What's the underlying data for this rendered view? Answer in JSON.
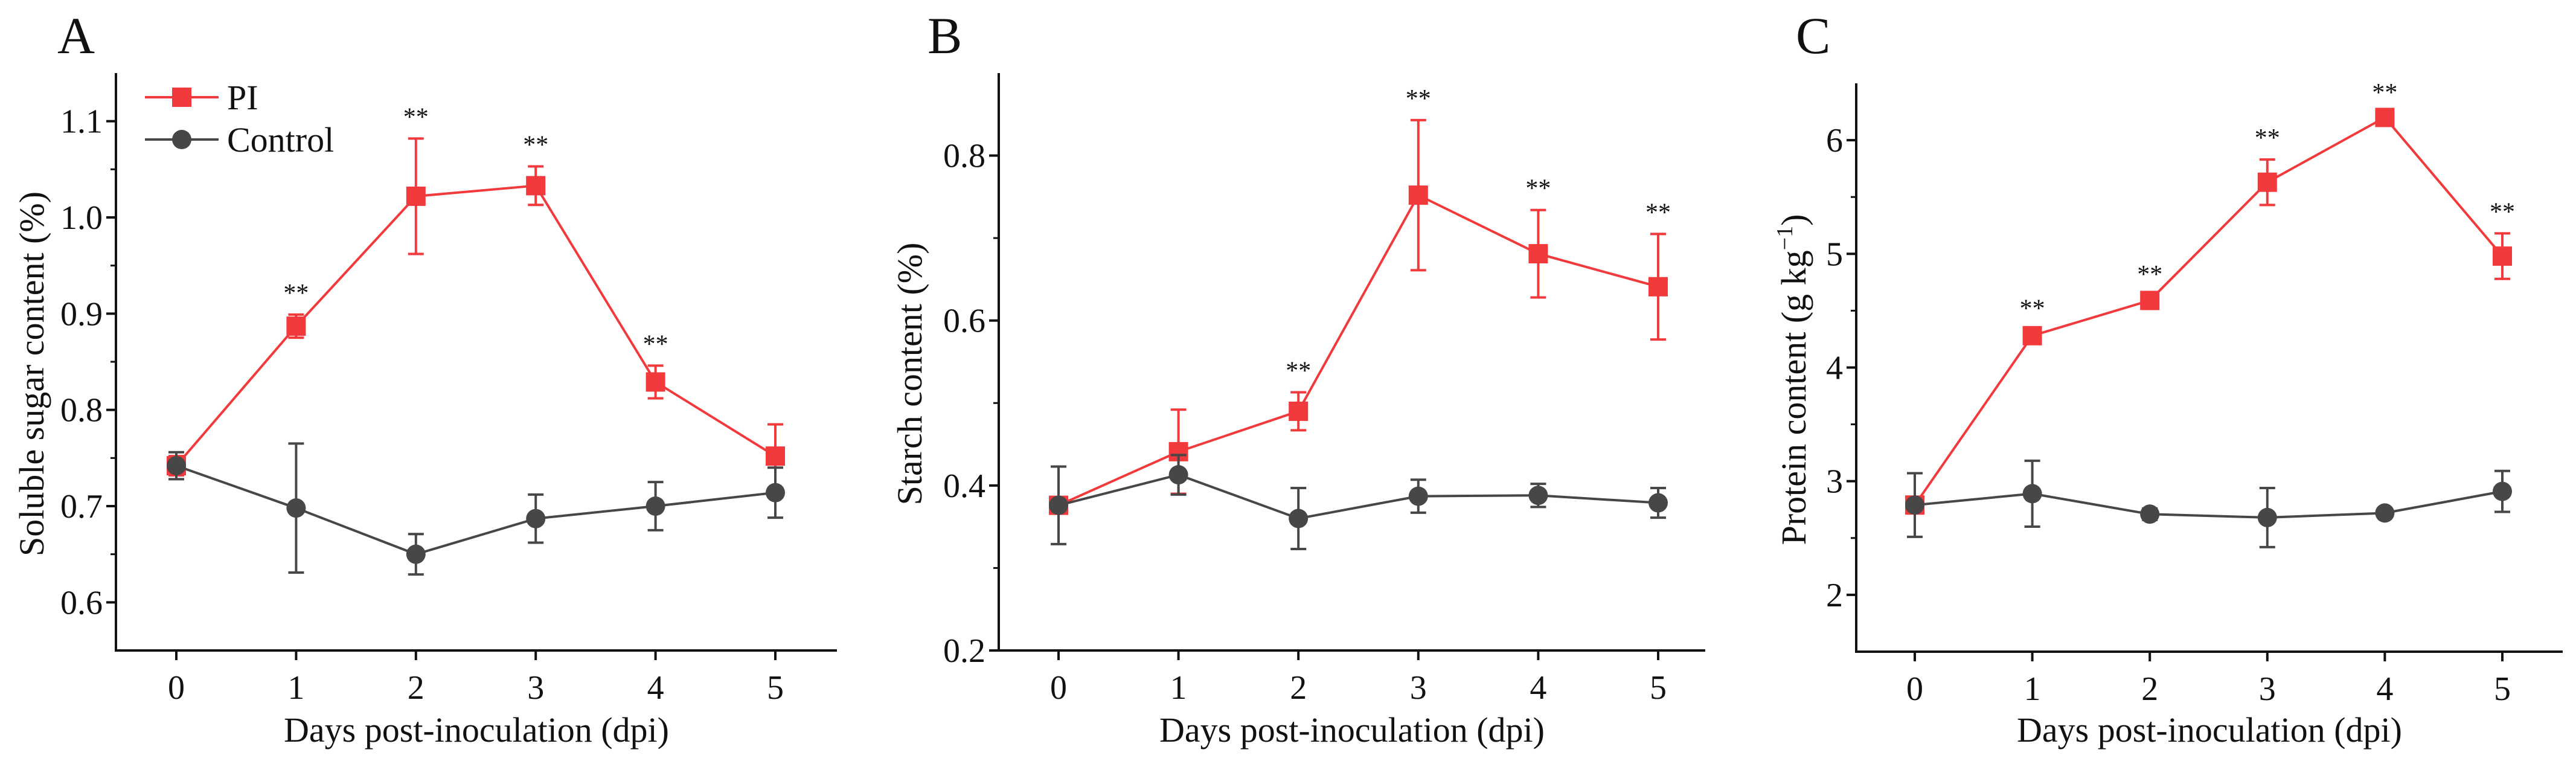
{
  "colors": {
    "PI": "#F2393C",
    "Control": "#474747"
  },
  "legend": [
    {
      "name": "PI",
      "marker": "square"
    },
    {
      "name": "Control",
      "marker": "circle"
    }
  ],
  "chart_data": [
    {
      "panel": "A",
      "type": "line",
      "xlabel": "Days post-inoculation (dpi)",
      "ylabel": "Soluble sugar content (%)",
      "ylabel_sup": "",
      "ylabel_end": "",
      "x": [
        0,
        1,
        2,
        3,
        4,
        5
      ],
      "xticks": [
        "0",
        "1",
        "2",
        "3",
        "4",
        "5"
      ],
      "ylim": [
        0.55,
        1.15
      ],
      "yticks": [
        0.6,
        0.7,
        0.8,
        0.9,
        1.0,
        1.1
      ],
      "ytick_labels": [
        "0.6",
        "0.7",
        "0.8",
        "0.9",
        "1.0",
        "1.1"
      ],
      "yminor": [
        0.65,
        0.75,
        0.85,
        0.95,
        1.05
      ],
      "legend_position": "top-left",
      "series": [
        {
          "name": "PI",
          "values": [
            0.742,
            0.887,
            1.022,
            1.033,
            0.829,
            0.752
          ],
          "errors": [
            0.01,
            0.012,
            0.06,
            0.02,
            0.017,
            0.033
          ]
        },
        {
          "name": "Control",
          "values": [
            0.742,
            0.698,
            0.65,
            0.687,
            0.7,
            0.714
          ],
          "errors": [
            0.014,
            0.067,
            0.021,
            0.025,
            0.025,
            0.026
          ]
        }
      ],
      "significance": [
        {
          "x": 1,
          "label": "**"
        },
        {
          "x": 2,
          "label": "**"
        },
        {
          "x": 3,
          "label": "**"
        },
        {
          "x": 4,
          "label": "**"
        }
      ]
    },
    {
      "panel": "B",
      "type": "line",
      "xlabel": "Days post-inoculation (dpi)",
      "ylabel": "Starch content (%)",
      "ylabel_sup": "",
      "ylabel_end": "",
      "x": [
        0,
        1,
        2,
        3,
        4,
        5
      ],
      "xticks": [
        "0",
        "1",
        "2",
        "3",
        "4",
        "5"
      ],
      "ylim": [
        0.2,
        0.9
      ],
      "yticks": [
        0.2,
        0.4,
        0.6,
        0.8
      ],
      "ytick_labels": [
        "0.2",
        "0.4",
        "0.6",
        "0.8"
      ],
      "yminor": [
        0.3,
        0.5,
        0.7
      ],
      "series": [
        {
          "name": "PI",
          "values": [
            0.376,
            0.441,
            0.49,
            0.752,
            0.681,
            0.641
          ],
          "errors": [
            0.008,
            0.051,
            0.023,
            0.091,
            0.053,
            0.064
          ]
        },
        {
          "name": "Control",
          "values": [
            0.376,
            0.413,
            0.36,
            0.387,
            0.388,
            0.379
          ],
          "errors": [
            0.047,
            0.024,
            0.037,
            0.02,
            0.014,
            0.018
          ]
        }
      ],
      "significance": [
        {
          "x": 2,
          "label": "**"
        },
        {
          "x": 3,
          "label": "**"
        },
        {
          "x": 4,
          "label": "**"
        },
        {
          "x": 5,
          "label": "**"
        }
      ]
    },
    {
      "panel": "C",
      "type": "line",
      "xlabel": "Days post-inoculation (dpi)",
      "ylabel": "Protein content (g kg",
      "ylabel_sup": "−1",
      "ylabel_end": ")",
      "x": [
        0,
        1,
        2,
        3,
        4,
        5
      ],
      "xticks": [
        "0",
        "1",
        "2",
        "3",
        "4",
        "5"
      ],
      "ylim": [
        1.5,
        6.5
      ],
      "yticks": [
        2,
        3,
        4,
        5,
        6
      ],
      "ytick_labels": [
        "2",
        "3",
        "4",
        "5",
        "6"
      ],
      "yminor": [
        2.5,
        3.5,
        4.5,
        5.5
      ],
      "series": [
        {
          "name": "PI",
          "values": [
            2.79,
            4.28,
            4.59,
            5.63,
            6.2,
            4.98
          ],
          "errors": [
            0.05,
            0.05,
            0.04,
            0.2,
            0.03,
            0.2
          ]
        },
        {
          "name": "Control",
          "values": [
            2.79,
            2.89,
            2.71,
            2.68,
            2.72,
            2.91
          ],
          "errors": [
            0.28,
            0.29,
            0.05,
            0.26,
            0.03,
            0.18
          ]
        }
      ],
      "significance": [
        {
          "x": 1,
          "label": "**"
        },
        {
          "x": 2,
          "label": "**"
        },
        {
          "x": 3,
          "label": "**"
        },
        {
          "x": 4,
          "label": "**"
        },
        {
          "x": 5,
          "label": "**"
        }
      ]
    }
  ]
}
